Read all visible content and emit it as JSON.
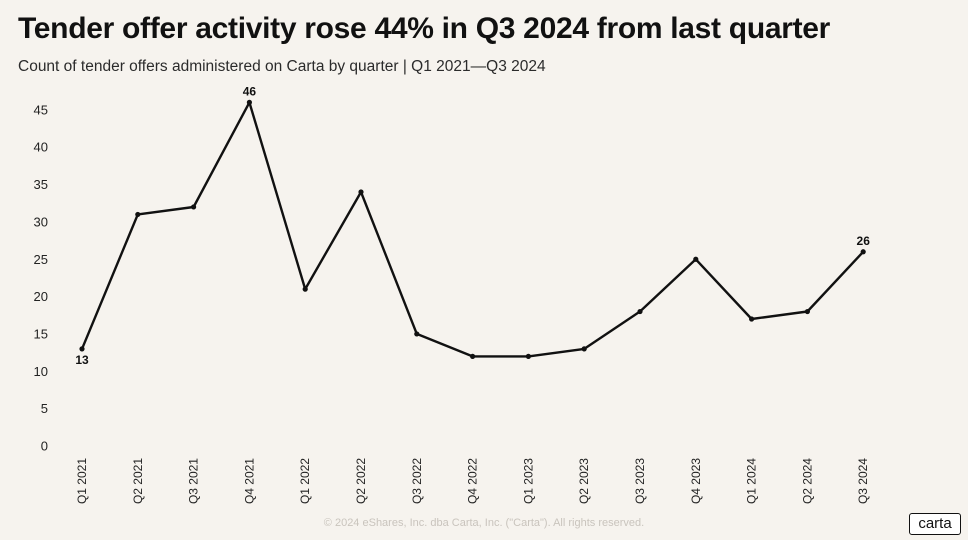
{
  "header": {
    "title": "Tender offer activity rose 44% in Q3 2024 from last quarter",
    "subtitle": "Count of tender offers administered on Carta by quarter | Q1 2021—Q3 2024"
  },
  "footer": {
    "copyright": "© 2024 eShares, Inc. dba Carta, Inc. (\"Carta\"). All rights reserved.",
    "logo_text": "carta"
  },
  "chart_data": {
    "type": "line",
    "title": "Tender offer activity rose 44% in Q3 2024 from last quarter",
    "subtitle": "Count of tender offers administered on Carta by quarter | Q1 2021—Q3 2024",
    "xlabel": "",
    "ylabel": "",
    "categories": [
      "Q1 2021",
      "Q2 2021",
      "Q3 2021",
      "Q4 2021",
      "Q1 2022",
      "Q2 2022",
      "Q3 2022",
      "Q4 2022",
      "Q1 2023",
      "Q2 2023",
      "Q3 2023",
      "Q4 2023",
      "Q1 2024",
      "Q2 2024",
      "Q3 2024"
    ],
    "series": [
      {
        "values": [
          13,
          31,
          32,
          46,
          21,
          34,
          15,
          12,
          12,
          13,
          18,
          25,
          17,
          18,
          26
        ]
      }
    ],
    "ylim": [
      0,
      45
    ],
    "yticks": [
      0,
      5,
      10,
      15,
      20,
      25,
      30,
      35,
      40,
      45
    ],
    "data_labels": [
      {
        "index": 0,
        "text": "13",
        "position": "below"
      },
      {
        "index": 3,
        "text": "46",
        "position": "above"
      },
      {
        "index": 14,
        "text": "26",
        "position": "above"
      }
    ],
    "grid": false,
    "legend": "none",
    "line_color": "#111111",
    "background": "#f6f3ee"
  }
}
